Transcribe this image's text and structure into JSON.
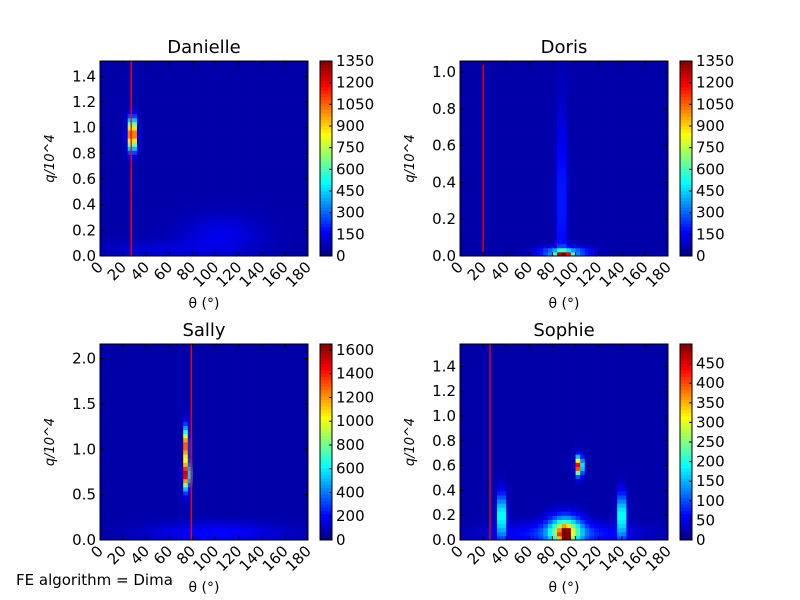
{
  "footnote": "FE algorithm = Dima",
  "chart_data": [
    {
      "type": "heatmap",
      "title": "Danielle",
      "xlabel": "θ (°)",
      "ylabel": "q/10^4",
      "xlim": [
        0,
        180
      ],
      "ylim": [
        0,
        1.52
      ],
      "xticks": [
        "0",
        "20",
        "40",
        "60",
        "80",
        "100",
        "120",
        "140",
        "160",
        "180"
      ],
      "yticks": [
        "0.0",
        "0.2",
        "0.4",
        "0.6",
        "0.8",
        "1.0",
        "1.2",
        "1.4"
      ],
      "colorbar": {
        "min": 0,
        "max": 1350,
        "ticks": [
          "0",
          "150",
          "300",
          "450",
          "600",
          "750",
          "900",
          "1050",
          "1200",
          "1350"
        ]
      },
      "vline_x": 27,
      "hotspots": [
        {
          "x": 28,
          "y": 0.95,
          "sx": 2.5,
          "sy": 0.08,
          "value": 1350
        },
        {
          "x": 105,
          "y": 0.15,
          "sx": 25,
          "sy": 0.12,
          "value": 90
        },
        {
          "x": 45,
          "y": 0.05,
          "sx": 30,
          "sy": 0.05,
          "value": 60
        }
      ]
    },
    {
      "type": "heatmap",
      "title": "Doris",
      "xlabel": "θ (°)",
      "ylabel": "q/10^4",
      "xlim": [
        0,
        180
      ],
      "ylim": [
        0,
        1.06
      ],
      "xticks": [
        "0",
        "20",
        "40",
        "60",
        "80",
        "100",
        "120",
        "140",
        "160",
        "180"
      ],
      "yticks": [
        "0.0",
        "0.2",
        "0.4",
        "0.6",
        "0.8",
        "1.0"
      ],
      "colorbar": {
        "min": 0,
        "max": 1350,
        "ticks": [
          "0",
          "150",
          "300",
          "450",
          "600",
          "750",
          "900",
          "1050",
          "1200",
          "1350"
        ]
      },
      "vline_x": 20,
      "hotspots": [
        {
          "x": 90,
          "y": 0.005,
          "sx": 4,
          "sy": 0.012,
          "value": 1350
        },
        {
          "x": 90,
          "y": 0.02,
          "sx": 14,
          "sy": 0.02,
          "value": 450
        },
        {
          "x": 88,
          "y": 0.3,
          "sx": 3,
          "sy": 0.35,
          "value": 180
        }
      ]
    },
    {
      "type": "heatmap",
      "title": "Sally",
      "xlabel": "θ (°)",
      "ylabel": "q/10^4",
      "xlim": [
        0,
        180
      ],
      "ylim": [
        0,
        2.16
      ],
      "xticks": [
        "0",
        "20",
        "40",
        "60",
        "80",
        "100",
        "120",
        "140",
        "160",
        "180"
      ],
      "yticks": [
        "0.0",
        "0.5",
        "1.0",
        "1.5",
        "2.0"
      ],
      "colorbar": {
        "min": 0,
        "max": 1650,
        "ticks": [
          "0",
          "200",
          "400",
          "600",
          "800",
          "1000",
          "1200",
          "1400",
          "1600"
        ]
      },
      "vline_x": 79,
      "hotspots": [
        {
          "x": 75,
          "y": 0.72,
          "sx": 2,
          "sy": 0.1,
          "value": 1400
        },
        {
          "x": 75,
          "y": 1.05,
          "sx": 1.5,
          "sy": 0.12,
          "value": 1300
        },
        {
          "x": 75,
          "y": 0.9,
          "sx": 1.5,
          "sy": 0.25,
          "value": 300
        },
        {
          "x": 100,
          "y": 0.08,
          "sx": 40,
          "sy": 0.08,
          "value": 150
        }
      ]
    },
    {
      "type": "heatmap",
      "title": "Sophie",
      "xlabel": "θ (°)",
      "ylabel": "q/10^4",
      "xlim": [
        0,
        180
      ],
      "ylim": [
        0,
        1.58
      ],
      "xticks": [
        "0",
        "20",
        "40",
        "60",
        "80",
        "100",
        "120",
        "140",
        "160",
        "180"
      ],
      "yticks": [
        "0.0",
        "0.2",
        "0.4",
        "0.6",
        "0.8",
        "1.0",
        "1.2",
        "1.4"
      ],
      "colorbar": {
        "min": 0,
        "max": 500,
        "ticks": [
          "0",
          "50",
          "100",
          "150",
          "200",
          "250",
          "300",
          "350",
          "400",
          "450"
        ]
      },
      "vline_x": 26,
      "hotspots": [
        {
          "x": 103,
          "y": 0.6,
          "sx": 2,
          "sy": 0.05,
          "value": 480
        },
        {
          "x": 91,
          "y": 0.04,
          "sx": 3,
          "sy": 0.04,
          "value": 480
        },
        {
          "x": 91,
          "y": 0.08,
          "sx": 10,
          "sy": 0.08,
          "value": 250
        },
        {
          "x": 36,
          "y": 0.2,
          "sx": 2.5,
          "sy": 0.12,
          "value": 230
        },
        {
          "x": 140,
          "y": 0.2,
          "sx": 2.5,
          "sy": 0.12,
          "value": 230
        },
        {
          "x": 90,
          "y": 0.05,
          "sx": 40,
          "sy": 0.06,
          "value": 70
        }
      ]
    }
  ]
}
